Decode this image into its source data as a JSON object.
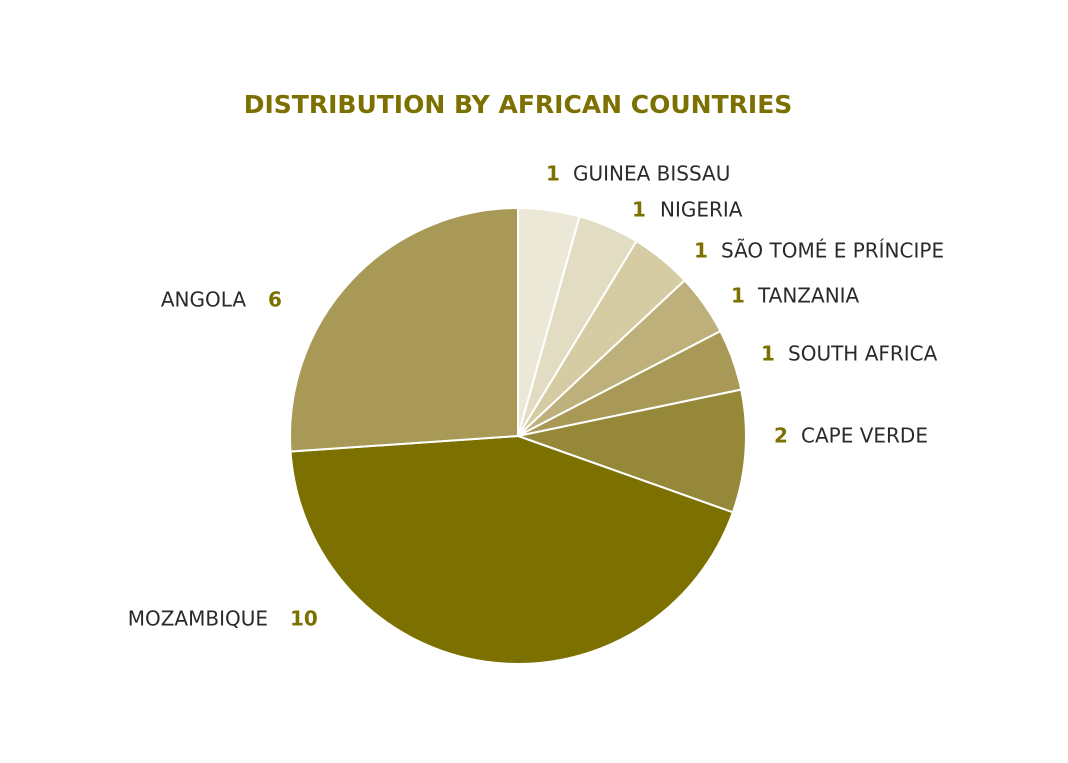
{
  "chart_data": {
    "type": "pie",
    "title": "DISTRIBUTION BY AFRICAN COUNTRIES",
    "categories": [
      "GUINEA BISSAU",
      "NIGERIA",
      "SÃO TOMÉ E PRÍNCIPE",
      "TANZANIA",
      "SOUTH AFRICA",
      "CAPE VERDE",
      "MOZAMBIQUE",
      "ANGOLA"
    ],
    "values": [
      1,
      1,
      1,
      1,
      1,
      2,
      10,
      6
    ],
    "colors": [
      "#ece8d8",
      "#e2dcc2",
      "#d6cca3",
      "#bdb07b",
      "#a89a56",
      "#958839",
      "#7c7000",
      "#a99956"
    ]
  }
}
